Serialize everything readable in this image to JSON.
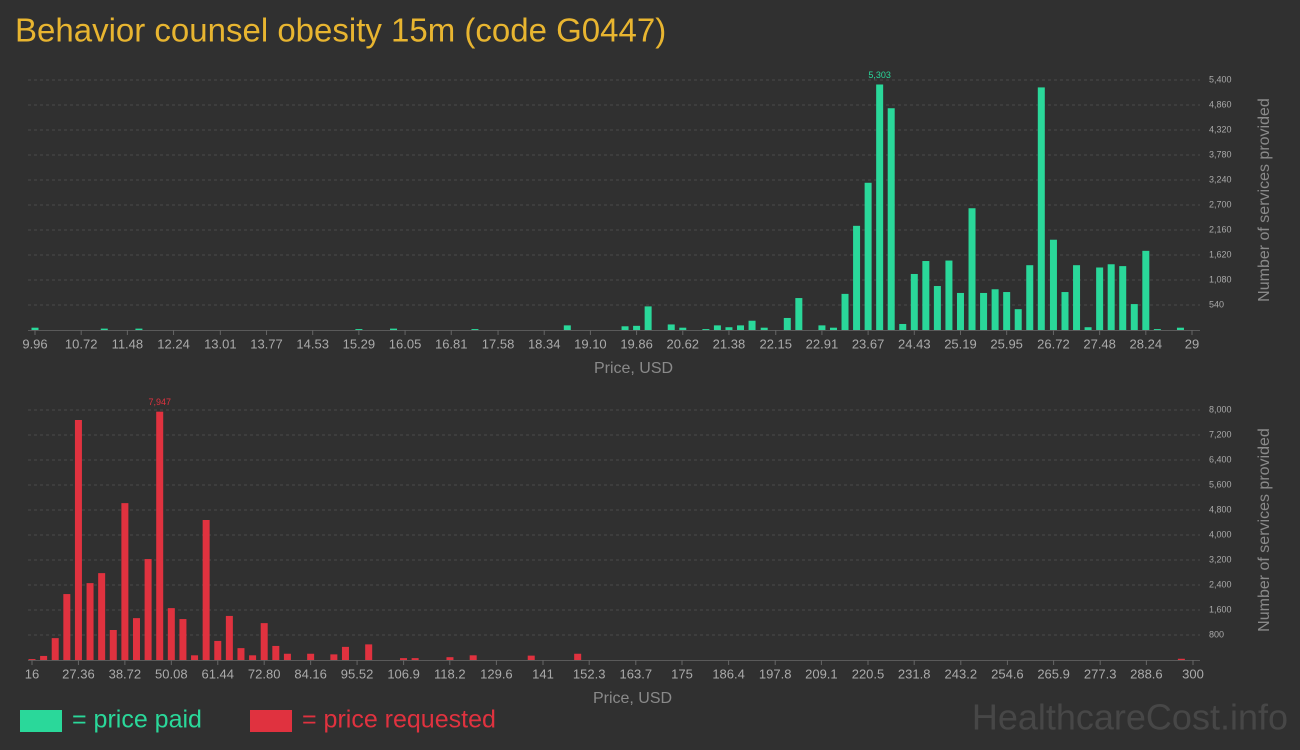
{
  "title": "Behavior counsel obesity 15m (code G0447)",
  "watermark": "HealthcareCost.info",
  "chart_data": [
    {
      "type": "bar",
      "xlabel": "Price, USD",
      "ylabel": "Number of services provided",
      "grid": true,
      "x": [
        9.96,
        11.1,
        11.67,
        15.29,
        15.86,
        17.2,
        18.72,
        19.67,
        19.86,
        20.05,
        20.43,
        20.62,
        21.0,
        21.19,
        21.38,
        21.57,
        21.76,
        21.96,
        22.34,
        22.53,
        22.91,
        23.1,
        23.29,
        23.48,
        23.67,
        23.86,
        24.05,
        24.24,
        24.43,
        24.62,
        24.81,
        25.0,
        25.19,
        25.38,
        25.57,
        25.76,
        25.95,
        26.14,
        26.33,
        26.52,
        26.72,
        26.91,
        27.1,
        27.29,
        27.48,
        27.67,
        27.86,
        28.05,
        28.24,
        28.43,
        28.81
      ],
      "series": [
        {
          "name": "= price paid",
          "color": "#2ad89a",
          "values": [
            50,
            30,
            30,
            20,
            30,
            20,
            100,
            80,
            90,
            510,
            120,
            50,
            20,
            100,
            60,
            100,
            200,
            50,
            260,
            690,
            100,
            50,
            780,
            2250,
            3180,
            5303,
            4790,
            130,
            1210,
            1490,
            950,
            1500,
            800,
            2630,
            800,
            880,
            820,
            450,
            1400,
            5240,
            1950,
            820,
            1400,
            60,
            1350,
            1420,
            1380,
            560,
            1710,
            20,
            50
          ],
          "value_labels": [
            null,
            null,
            null,
            null,
            null,
            null,
            null,
            null,
            null,
            null,
            null,
            null,
            null,
            null,
            null,
            null,
            null,
            null,
            null,
            null,
            null,
            null,
            null,
            null,
            null,
            "5,303",
            null,
            null,
            null,
            null,
            null,
            null,
            null,
            null,
            null,
            null,
            null,
            null,
            null,
            null,
            null,
            null,
            null,
            null,
            null,
            null,
            null,
            null,
            null,
            null,
            null
          ]
        }
      ],
      "xlim": [
        9.96,
        29
      ],
      "xticks": [
        9.96,
        10.72,
        11.48,
        12.24,
        13.01,
        13.77,
        14.53,
        15.29,
        16.05,
        16.81,
        17.58,
        18.34,
        {
          "value": 19.1,
          "label": "19.10"
        },
        19.86,
        20.62,
        21.38,
        22.15,
        22.91,
        23.67,
        24.43,
        25.19,
        25.95,
        26.72,
        27.48,
        28.24,
        29
      ],
      "ylim": [
        0,
        5400
      ],
      "yticks": [
        540,
        {
          "value": 1080,
          "label": "1,080"
        },
        {
          "value": 1620,
          "label": "1,620"
        },
        {
          "value": 2160,
          "label": "2,160"
        },
        {
          "value": 2700,
          "label": "2,700"
        },
        {
          "value": 3240,
          "label": "3,240"
        },
        {
          "value": 3780,
          "label": "3,780"
        },
        {
          "value": 4320,
          "label": "4,320"
        },
        {
          "value": 4860,
          "label": "4,860"
        },
        {
          "value": 5400,
          "label": "5,400"
        }
      ]
    },
    {
      "type": "bar",
      "xlabel": "Price, USD",
      "ylabel": "Number of services provided",
      "grid": true,
      "x": [
        16,
        18.84,
        21.68,
        24.52,
        27.36,
        30.2,
        33.04,
        35.88,
        38.72,
        41.56,
        44.4,
        47.24,
        50.08,
        52.92,
        55.76,
        58.6,
        61.44,
        64.28,
        67.12,
        69.96,
        72.8,
        75.64,
        78.48,
        84.16,
        89.84,
        92.68,
        98.36,
        106.88,
        109.72,
        118.24,
        123.92,
        138.12,
        149.48,
        297.16
      ],
      "series": [
        {
          "name": "= price requested",
          "color": "#e0323f",
          "values": [
            30,
            130,
            700,
            2110,
            7680,
            2460,
            2780,
            960,
            5020,
            1340,
            3230,
            7947,
            1660,
            1310,
            150,
            4480,
            610,
            1410,
            380,
            150,
            1180,
            450,
            200,
            200,
            180,
            420,
            500,
            60,
            60,
            90,
            150,
            140,
            200,
            40
          ],
          "value_labels": [
            null,
            null,
            null,
            null,
            null,
            null,
            null,
            null,
            null,
            null,
            null,
            "7,947",
            null,
            null,
            null,
            null,
            null,
            null,
            null,
            null,
            null,
            null,
            null,
            null,
            null,
            null,
            null,
            null,
            null,
            null,
            null,
            null,
            null,
            null
          ]
        }
      ],
      "xlim": [
        16,
        300
      ],
      "xticks": [
        16,
        27.36,
        38.72,
        50.08,
        61.44,
        {
          "value": 72.8,
          "label": "72.80"
        },
        84.16,
        95.52,
        106.9,
        118.2,
        129.6,
        141,
        152.3,
        163.7,
        175,
        186.4,
        197.8,
        209.1,
        220.5,
        231.8,
        243.2,
        254.6,
        265.9,
        277.3,
        288.6,
        300
      ],
      "ylim": [
        0,
        8000
      ],
      "yticks": [
        800,
        {
          "value": 1600,
          "label": "1,600"
        },
        {
          "value": 2400,
          "label": "2,400"
        },
        {
          "value": 3200,
          "label": "3,200"
        },
        {
          "value": 4000,
          "label": "4,000"
        },
        {
          "value": 4800,
          "label": "4,800"
        },
        {
          "value": 5600,
          "label": "5,600"
        },
        {
          "value": 6400,
          "label": "6,400"
        },
        {
          "value": 7200,
          "label": "7,200"
        },
        {
          "value": 8000,
          "label": "8,000"
        }
      ]
    }
  ]
}
